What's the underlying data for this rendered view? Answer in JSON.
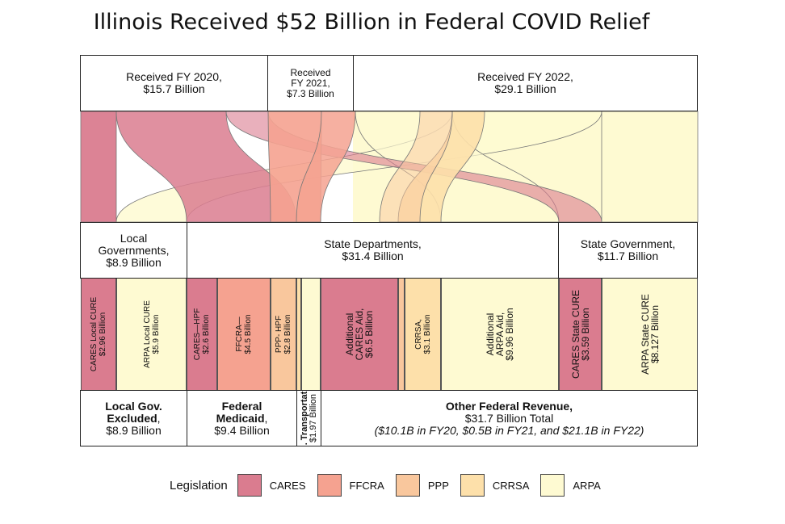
{
  "title": "Illinois Received $52 Billion in Federal COVID Relief",
  "colors": {
    "CARES": "#da7c8f",
    "FFCRA": "#f5a290",
    "PPP": "#f9c79d",
    "CRRSA": "#fde0aa",
    "ARPA": "#fefad2"
  },
  "fiscal_years": [
    {
      "line1": "Received FY 2020,",
      "line2": "$15.7 Billion"
    },
    {
      "line1": "Received",
      "line2": "FY 2021,",
      "line3": "$7.3 Billion"
    },
    {
      "line1": "Received FY 2022,",
      "line2": "$29.1 Billion"
    }
  ],
  "recipients": [
    {
      "line1": "Local",
      "line2": "Governments,",
      "line3": "$8.9 Billion"
    },
    {
      "line1": "State Departments,",
      "line2": "$31.4 Billion"
    },
    {
      "line1": "State Government,",
      "line2": "$11.7 Billion"
    }
  ],
  "programs": [
    {
      "line1": "CARES  Local CURE",
      "line2": "$2.96 Billion",
      "legislation": "CARES"
    },
    {
      "line1": "ARPA Local CURE",
      "line2": "$5.9 Billion",
      "legislation": "ARPA"
    },
    {
      "line1": "CARES—HPF",
      "line2": "$2.6 Billion",
      "legislation": "CARES"
    },
    {
      "line1": "FFCRA—",
      "line2": "$4.5 Billion",
      "legislation": "FFCRA"
    },
    {
      "line1": "PPP- HPF",
      "line2": "$2.8 Billion",
      "legislation": "PPP"
    },
    {
      "line1": "",
      "line2": "",
      "legislation": "CRRSA"
    },
    {
      "line1": "",
      "line2": "",
      "legislation": "ARPA"
    },
    {
      "line1": "Additional",
      "line2": "CARES Aid,",
      "line3": "$6.5 Billion",
      "legislation": "CARES"
    },
    {
      "line1": "",
      "line2": "",
      "legislation": "PPP"
    },
    {
      "line1": "CRRSA,",
      "line2": "$3.1 Billion",
      "legislation": "CRRSA"
    },
    {
      "line1": "Additional",
      "line2": "ARPA Aid,",
      "line3": "$9.96 Billion",
      "legislation": "ARPA"
    },
    {
      "line1": "CARES State CURE",
      "line2": "$3.59 Billion",
      "legislation": "CARES"
    },
    {
      "line1": "ARPA State CURE",
      "line2": "$8.127 Billion",
      "legislation": "ARPA"
    }
  ],
  "categories": [
    {
      "bold1": "Local Gov.",
      "bold2": "Excluded",
      "rest": ",",
      "amount": "$8.9 Billion"
    },
    {
      "bold1": "Federal",
      "bold2": "Medicaid",
      "rest": ",",
      "amount": "$9.4 Billion"
    },
    {
      "bold1": "Fed. Transportation,",
      "amount": "$1.97 Billion"
    },
    {
      "bold1": "Other Federal Revenue,",
      "amount": "$31.7 Billion Total",
      "note": "($10.1B in FY20, $0.5B in FY21, and $21.1B in FY22)"
    }
  ],
  "legend": {
    "title": "Legislation",
    "items": [
      {
        "key": "CARES",
        "label": "CARES"
      },
      {
        "key": "FFCRA",
        "label": "FFCRA"
      },
      {
        "key": "PPP",
        "label": "PPP"
      },
      {
        "key": "CRRSA",
        "label": "CRRSA"
      },
      {
        "key": "ARPA",
        "label": "ARPA"
      }
    ]
  }
}
